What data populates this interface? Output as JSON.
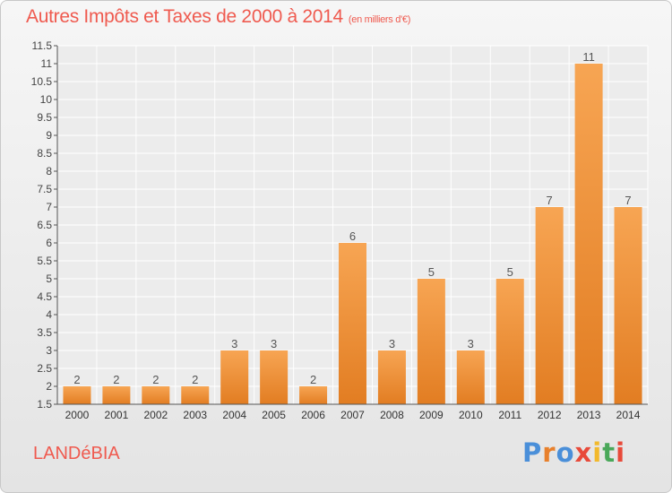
{
  "header": {
    "title": "Autres Impôts et Taxes de 2000 à 2014",
    "subtitle": "(en milliers d'€)"
  },
  "footer": {
    "city": "LANDéBIA",
    "brand": "Proxiti",
    "brand_colors": [
      "#4a8fd9",
      "#e8802c",
      "#4a8fd9",
      "#e84a3a",
      "#f2b92c",
      "#4aa85a",
      "#e84a3a"
    ]
  },
  "chart_data": {
    "type": "bar",
    "categories": [
      "2000",
      "2001",
      "2002",
      "2003",
      "2004",
      "2005",
      "2006",
      "2007",
      "2008",
      "2009",
      "2010",
      "2011",
      "2012",
      "2013",
      "2014"
    ],
    "values": [
      2,
      2,
      2,
      2,
      3,
      3,
      2,
      6,
      3,
      5,
      3,
      5,
      7,
      11,
      7
    ],
    "ylim": [
      1.5,
      11.5
    ],
    "yticks": [
      "1.5",
      "2",
      "2.5",
      "3",
      "3.5",
      "4",
      "4.5",
      "5",
      "5.5",
      "6",
      "6.5",
      "7",
      "7.5",
      "8",
      "8.5",
      "9",
      "9.5",
      "10",
      "10.5",
      "11",
      "11.5"
    ],
    "grid": true,
    "bar_color": "#f29a45",
    "title": "Autres Impôts et Taxes de 2000 à 2014",
    "subtitle": "(en milliers d'€)"
  }
}
